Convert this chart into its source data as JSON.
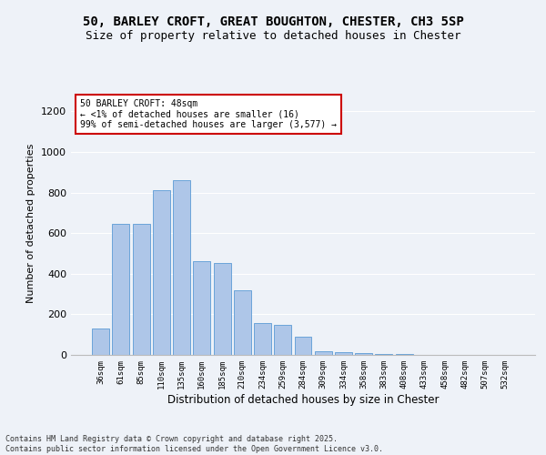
{
  "title": "50, BARLEY CROFT, GREAT BOUGHTON, CHESTER, CH3 5SP",
  "subtitle": "Size of property relative to detached houses in Chester",
  "xlabel": "Distribution of detached houses by size in Chester",
  "ylabel": "Number of detached properties",
  "categories": [
    "36sqm",
    "61sqm",
    "85sqm",
    "110sqm",
    "135sqm",
    "160sqm",
    "185sqm",
    "210sqm",
    "234sqm",
    "259sqm",
    "284sqm",
    "309sqm",
    "334sqm",
    "358sqm",
    "383sqm",
    "408sqm",
    "433sqm",
    "458sqm",
    "482sqm",
    "507sqm",
    "532sqm"
  ],
  "values": [
    130,
    645,
    645,
    810,
    860,
    460,
    455,
    320,
    155,
    150,
    90,
    20,
    15,
    10,
    5,
    3,
    2,
    1,
    1,
    1,
    0
  ],
  "bar_color": "#aec6e8",
  "bar_edge_color": "#5b9bd5",
  "annotation_text": "50 BARLEY CROFT: 48sqm\n← <1% of detached houses are smaller (16)\n99% of semi-detached houses are larger (3,577) →",
  "annotation_box_color": "#ffffff",
  "annotation_box_edge_color": "#cc0000",
  "ylim": [
    0,
    1300
  ],
  "yticks": [
    0,
    200,
    400,
    600,
    800,
    1000,
    1200
  ],
  "background_color": "#eef2f8",
  "footer_line1": "Contains HM Land Registry data © Crown copyright and database right 2025.",
  "footer_line2": "Contains public sector information licensed under the Open Government Licence v3.0.",
  "title_fontsize": 10,
  "subtitle_fontsize": 9,
  "bar_linewidth": 0.6
}
